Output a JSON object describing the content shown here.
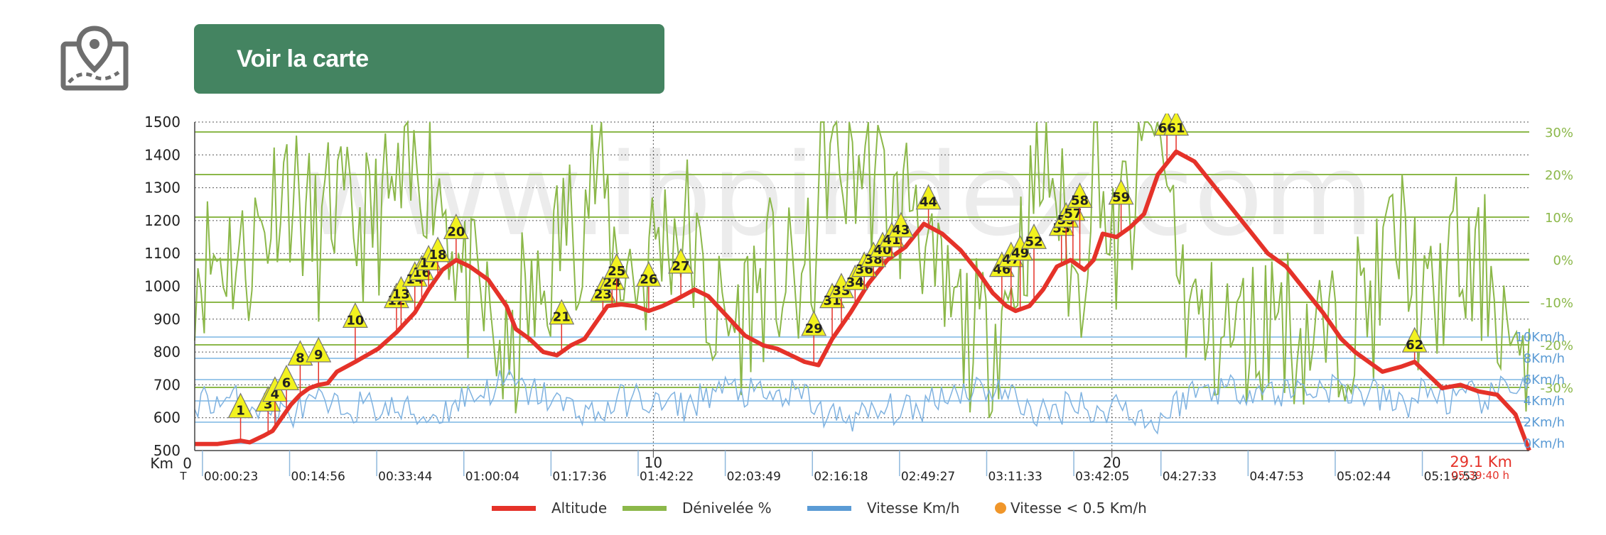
{
  "header": {
    "map_icon": "map-pin-icon",
    "map_button_label": "Voir la carte"
  },
  "colors": {
    "altitude": "#e53229",
    "slope": "#8cb84a",
    "speed": "#5b9bd5",
    "stop": "#f0962a",
    "button": "#448461",
    "marker": "#f2f21f"
  },
  "watermark": "www.ibpindex.com",
  "chart_data": {
    "type": "line",
    "x_unit": "Km",
    "x_start_label": "0",
    "x_end_label": "29.1 Km",
    "time_prefix": "T",
    "end_time": "05:39:40 h",
    "x_major_ticks": [
      {
        "km": 10,
        "label": "10"
      },
      {
        "km": 20,
        "label": "20"
      }
    ],
    "time_ticks": [
      {
        "km": 0.2,
        "label": "00:00:23"
      },
      {
        "km": 2.1,
        "label": "00:14:56"
      },
      {
        "km": 4.0,
        "label": "00:33:44"
      },
      {
        "km": 5.9,
        "label": "01:00:04"
      },
      {
        "km": 7.8,
        "label": "01:17:36"
      },
      {
        "km": 9.7,
        "label": "01:42:22"
      },
      {
        "km": 11.6,
        "label": "02:03:49"
      },
      {
        "km": 13.5,
        "label": "02:16:18"
      },
      {
        "km": 15.4,
        "label": "02:49:27"
      },
      {
        "km": 17.3,
        "label": "03:11:33"
      },
      {
        "km": 19.2,
        "label": "03:42:05"
      },
      {
        "km": 21.1,
        "label": "04:27:33"
      },
      {
        "km": 23.0,
        "label": "04:47:53"
      },
      {
        "km": 24.9,
        "label": "05:02:44"
      },
      {
        "km": 26.8,
        "label": "05:19:53"
      }
    ],
    "y_left": {
      "ylim": [
        500,
        1500
      ],
      "ticks": [
        500,
        600,
        700,
        800,
        900,
        1000,
        1100,
        1200,
        1300,
        1400,
        1500
      ]
    },
    "y_right_slope": {
      "ticks": [
        {
          "value": 30,
          "label": "30%"
        },
        {
          "value": 20,
          "label": "20%"
        },
        {
          "value": 10,
          "label": "10%"
        },
        {
          "value": 0,
          "label": "0%"
        },
        {
          "value": -10,
          "label": "-10%"
        },
        {
          "value": -20,
          "label": "-20%"
        },
        {
          "value": -30,
          "label": "-30%"
        }
      ]
    },
    "y_right_speed": {
      "ticks": [
        {
          "value": 10,
          "label": "10Km/h"
        },
        {
          "value": 8,
          "label": "8Km/h"
        },
        {
          "value": 6,
          "label": "6Km/h"
        },
        {
          "value": 4,
          "label": "4Km/h"
        },
        {
          "value": 2,
          "label": "2Km/h"
        },
        {
          "value": 0,
          "label": "0Km/h"
        }
      ]
    },
    "series": [
      {
        "name": "Altitude",
        "x": [
          0,
          0.5,
          1.0,
          1.2,
          1.5,
          1.7,
          1.9,
          2.1,
          2.3,
          2.5,
          2.7,
          2.9,
          3.1,
          3.5,
          4.0,
          4.4,
          4.8,
          5.1,
          5.4,
          5.7,
          6.0,
          6.4,
          6.8,
          7.0,
          7.3,
          7.6,
          7.9,
          8.2,
          8.5,
          8.8,
          9.0,
          9.3,
          9.6,
          9.9,
          10.2,
          10.5,
          10.9,
          11.2,
          11.6,
          12.0,
          12.4,
          12.7,
          13.0,
          13.3,
          13.6,
          13.9,
          14.3,
          14.7,
          15.1,
          15.5,
          15.9,
          16.3,
          16.7,
          17.1,
          17.4,
          17.7,
          17.9,
          18.2,
          18.5,
          18.8,
          19.1,
          19.4,
          19.6,
          19.8,
          20.1,
          20.4,
          20.7,
          21.0,
          21.4,
          21.8,
          22.2,
          22.6,
          23.0,
          23.4,
          23.8,
          24.2,
          24.6,
          25.0,
          25.3,
          25.6,
          25.9,
          26.3,
          26.6,
          26.9,
          27.2,
          27.6,
          28.0,
          28.4,
          28.8,
          29.1
        ],
        "y": [
          520,
          520,
          530,
          525,
          545,
          560,
          600,
          640,
          670,
          690,
          700,
          705,
          740,
          770,
          810,
          860,
          920,
          990,
          1050,
          1080,
          1060,
          1020,
          940,
          870,
          840,
          800,
          790,
          820,
          840,
          900,
          940,
          945,
          940,
          925,
          940,
          960,
          990,
          970,
          910,
          850,
          820,
          810,
          790,
          770,
          760,
          840,
          920,
          1010,
          1080,
          1120,
          1190,
          1160,
          1110,
          1040,
          980,
          940,
          925,
          940,
          990,
          1060,
          1080,
          1050,
          1080,
          1160,
          1150,
          1180,
          1220,
          1340,
          1410,
          1380,
          1310,
          1240,
          1170,
          1100,
          1060,
          990,
          920,
          840,
          800,
          770,
          740,
          755,
          770,
          730,
          690,
          700,
          680,
          670,
          610,
          500
        ]
      },
      {
        "name": "Dénivelée %"
      },
      {
        "name": "Vitesse Km/h"
      },
      {
        "name": "Vitesse < 0.5 Km/h"
      }
    ],
    "waypoints": [
      {
        "label": "1",
        "km": 1.0,
        "alt": 600
      },
      {
        "label": "3",
        "km": 1.6,
        "alt": 620
      },
      {
        "label": "4",
        "km": 1.75,
        "alt": 650
      },
      {
        "label": "6",
        "km": 2.0,
        "alt": 685
      },
      {
        "label": "8",
        "km": 2.3,
        "alt": 760
      },
      {
        "label": "9",
        "km": 2.7,
        "alt": 770
      },
      {
        "label": "10",
        "km": 3.5,
        "alt": 875
      },
      {
        "label": "12",
        "km": 4.4,
        "alt": 935
      },
      {
        "label": "13",
        "km": 4.5,
        "alt": 955
      },
      {
        "label": "14",
        "km": 4.8,
        "alt": 1000
      },
      {
        "label": "16",
        "km": 4.95,
        "alt": 1020
      },
      {
        "label": "17",
        "km": 5.1,
        "alt": 1050
      },
      {
        "label": "18",
        "km": 5.3,
        "alt": 1075
      },
      {
        "label": "20",
        "km": 5.7,
        "alt": 1145
      },
      {
        "label": "21",
        "km": 8.0,
        "alt": 885
      },
      {
        "label": "23",
        "km": 8.9,
        "alt": 955
      },
      {
        "label": "24",
        "km": 9.1,
        "alt": 990
      },
      {
        "label": "25",
        "km": 9.2,
        "alt": 1025
      },
      {
        "label": "26",
        "km": 9.9,
        "alt": 1000
      },
      {
        "label": "27",
        "km": 10.6,
        "alt": 1040
      },
      {
        "label": "29",
        "km": 13.5,
        "alt": 850
      },
      {
        "label": "31",
        "km": 13.9,
        "alt": 935
      },
      {
        "label": "33",
        "km": 14.1,
        "alt": 965
      },
      {
        "label": "34",
        "km": 14.4,
        "alt": 990
      },
      {
        "label": "36",
        "km": 14.6,
        "alt": 1030
      },
      {
        "label": "38",
        "km": 14.8,
        "alt": 1060
      },
      {
        "label": "40",
        "km": 15.0,
        "alt": 1090
      },
      {
        "label": "41",
        "km": 15.2,
        "alt": 1120
      },
      {
        "label": "43",
        "km": 15.4,
        "alt": 1150
      },
      {
        "label": "44",
        "km": 16.0,
        "alt": 1235
      },
      {
        "label": "46",
        "km": 17.6,
        "alt": 1030
      },
      {
        "label": "47",
        "km": 17.8,
        "alt": 1060
      },
      {
        "label": "49",
        "km": 18.0,
        "alt": 1080
      },
      {
        "label": "52",
        "km": 18.3,
        "alt": 1115
      },
      {
        "label": "53",
        "km": 18.9,
        "alt": 1155
      },
      {
        "label": "55",
        "km": 19.0,
        "alt": 1180
      },
      {
        "label": "57",
        "km": 19.15,
        "alt": 1200
      },
      {
        "label": "58",
        "km": 19.3,
        "alt": 1240
      },
      {
        "label": "59",
        "km": 20.2,
        "alt": 1250
      },
      {
        "label": "60",
        "km": 21.2,
        "alt": 1460
      },
      {
        "label": "61",
        "km": 21.4,
        "alt": 1460
      },
      {
        "label": "62",
        "km": 26.6,
        "alt": 800
      }
    ],
    "legend": [
      {
        "label": "Altitude",
        "color": "#e53229"
      },
      {
        "label": "Dénivelée %",
        "color": "#8cb84a"
      },
      {
        "label": "Vitesse Km/h",
        "color": "#5b9bd5"
      },
      {
        "label": "Vitesse < 0.5 Km/h",
        "color": "#f0962a"
      }
    ],
    "legend_position": "bottom",
    "grid": true
  }
}
